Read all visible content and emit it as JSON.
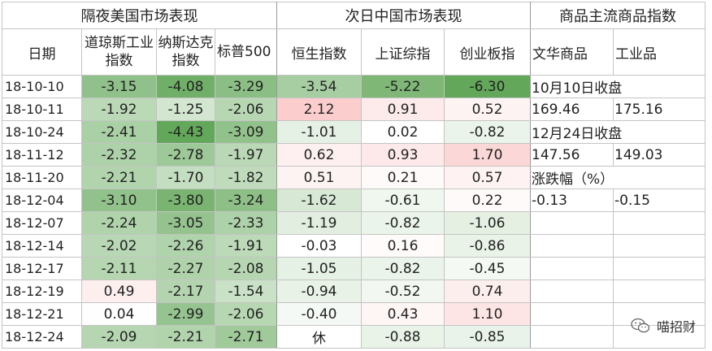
{
  "headers": {
    "groups": {
      "us": "隔夜美国市场表现",
      "cn": "次日中国市场表现",
      "comm": "商品主流商品指数"
    },
    "columns": {
      "date": "日期",
      "dow": "道琼斯工业指数",
      "nasdaq": "纳斯达克指数",
      "sp": "标普500",
      "hsi": "恒生指数",
      "sse": "上证综指",
      "chinext": "创业板指",
      "wenhua": "文华商品",
      "industrial": "工业品"
    }
  },
  "rows": [
    {
      "date": "18-10-10",
      "dow": "-3.15",
      "nasdaq": "-4.08",
      "sp": "-3.29",
      "hsi": "-3.54",
      "sse": "-5.22",
      "chinext": "-6.30"
    },
    {
      "date": "18-10-11",
      "dow": "-1.92",
      "nasdaq": "-1.25",
      "sp": "-2.06",
      "hsi": "2.12",
      "sse": "0.91",
      "chinext": "0.52"
    },
    {
      "date": "18-10-24",
      "dow": "-2.41",
      "nasdaq": "-4.43",
      "sp": "-3.09",
      "hsi": "-1.01",
      "sse": "0.02",
      "chinext": "-0.82"
    },
    {
      "date": "18-11-12",
      "dow": "-2.32",
      "nasdaq": "-2.78",
      "sp": "-1.97",
      "hsi": "0.62",
      "sse": "0.93",
      "chinext": "1.70"
    },
    {
      "date": "18-11-20",
      "dow": "-2.21",
      "nasdaq": "-1.70",
      "sp": "-1.82",
      "hsi": "0.51",
      "sse": "0.21",
      "chinext": "0.57"
    },
    {
      "date": "18-12-04",
      "dow": "-3.10",
      "nasdaq": "-3.80",
      "sp": "-3.24",
      "hsi": "-1.62",
      "sse": "-0.61",
      "chinext": "0.22"
    },
    {
      "date": "18-12-07",
      "dow": "-2.24",
      "nasdaq": "-3.05",
      "sp": "-2.33",
      "hsi": "-1.19",
      "sse": "-0.82",
      "chinext": "-1.06"
    },
    {
      "date": "18-12-14",
      "dow": "-2.02",
      "nasdaq": "-2.26",
      "sp": "-1.91",
      "hsi": "-0.03",
      "sse": "0.16",
      "chinext": "-0.86"
    },
    {
      "date": "18-12-17",
      "dow": "-2.11",
      "nasdaq": "-2.27",
      "sp": "-2.08",
      "hsi": "-1.05",
      "sse": "-0.82",
      "chinext": "-0.45"
    },
    {
      "date": "18-12-19",
      "dow": "0.49",
      "nasdaq": "-2.17",
      "sp": "-1.54",
      "hsi": "-0.94",
      "sse": "-0.52",
      "chinext": "0.74"
    },
    {
      "date": "18-12-21",
      "dow": "0.04",
      "nasdaq": "-2.99",
      "sp": "-2.06",
      "hsi": "-0.40",
      "sse": "0.43",
      "chinext": "1.10"
    },
    {
      "date": "18-12-24",
      "dow": "-2.09",
      "nasdaq": "-2.21",
      "sp": "-2.71",
      "hsi": "休",
      "sse": "-0.88",
      "chinext": "-0.85"
    }
  ],
  "commodities": {
    "oct10_label": "10月10日收盘",
    "oct10_wenhua": "169.46",
    "oct10_industrial": "175.16",
    "dec24_label": "12月24日收盘",
    "dec24_wenhua": "147.56",
    "dec24_industrial": "149.03",
    "change_label": "涨跌幅（%）",
    "change_wenhua": "-0.13",
    "change_industrial": "-0.15"
  },
  "colors": {
    "positive": "#f26b6b",
    "negative": "#63a85a",
    "neutral": "#ffffff",
    "grid": "#c4c4c4"
  },
  "watermark": {
    "text": "喵招财",
    "icon": "wechat-icon"
  }
}
